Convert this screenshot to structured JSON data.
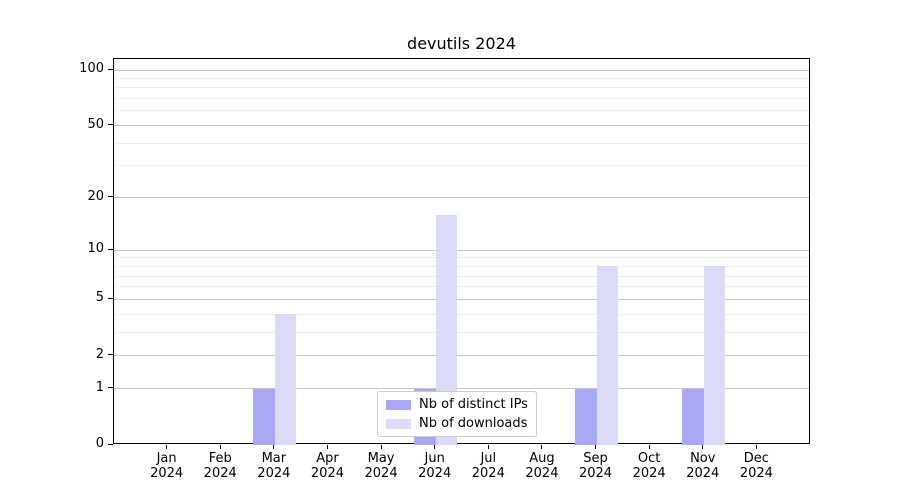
{
  "chart_data": {
    "type": "bar",
    "title": "devutils 2024",
    "categories": [
      "Jan 2024",
      "Feb 2024",
      "Mar 2024",
      "Apr 2024",
      "May 2024",
      "Jun 2024",
      "Jul 2024",
      "Aug 2024",
      "Sep 2024",
      "Oct 2024",
      "Nov 2024",
      "Dec 2024"
    ],
    "series": [
      {
        "name": "Nb of distinct IPs",
        "color": "#a8a8f6",
        "values": [
          0,
          0,
          1,
          0,
          0,
          1,
          0,
          0,
          1,
          0,
          1,
          0
        ]
      },
      {
        "name": "Nb of downloads",
        "color": "#dbdbf8",
        "values": [
          0,
          0,
          4,
          0,
          0,
          16,
          0,
          0,
          8,
          0,
          8,
          0
        ]
      }
    ],
    "y_axis": {
      "scale": "log1p",
      "tick_values": [
        0,
        1,
        2,
        5,
        10,
        20,
        50,
        100
      ],
      "tick_labels": [
        "0",
        "1",
        "2",
        "5",
        "10",
        "20",
        "50",
        "100"
      ],
      "minor_gridline_values": [
        3,
        4,
        6,
        7,
        8,
        9,
        30,
        40,
        60,
        70,
        80,
        90
      ],
      "ylim": [
        0,
        115
      ]
    },
    "xlabel": "",
    "ylabel": "",
    "grid": true,
    "legend": {
      "position": "lower-center"
    },
    "colors": {
      "major_grid": "#c6c6c6",
      "minor_grid": "#ededed",
      "axis": "#000000",
      "text": "#000000",
      "background": "#ffffff"
    }
  }
}
